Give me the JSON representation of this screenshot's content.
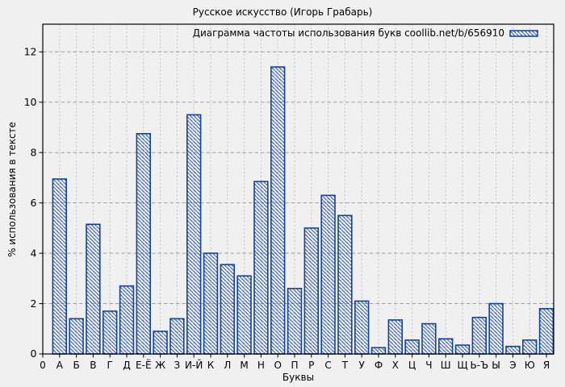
{
  "colors": {
    "background": "#f0f0f0",
    "bar_stroke": "#1243a2",
    "grid_major": "#9e9e9e",
    "grid_minor": "#b4b4b4",
    "axis": "#000000",
    "text": "#000000"
  },
  "chart_data": {
    "type": "bar",
    "title": "Русское искусство (Игорь Грабарь)",
    "legend_label": "Диаграмма частоты использования букв coollib.net/b/656910",
    "legend_position": "top-right",
    "xlabel": "Буквы",
    "ylabel": "% использования в тексте",
    "x_origin_label": "0",
    "categories": [
      "А",
      "Б",
      "В",
      "Г",
      "Д",
      "Е-Ё",
      "Ж",
      "З",
      "И-Й",
      "К",
      "Л",
      "М",
      "Н",
      "О",
      "П",
      "Р",
      "С",
      "Т",
      "У",
      "Ф",
      "Х",
      "Ц",
      "Ч",
      "Ш",
      "Щ",
      "Ь-Ъ",
      "Ы",
      "Э",
      "Ю",
      "Я"
    ],
    "values": [
      6.95,
      1.4,
      5.15,
      1.7,
      2.7,
      8.75,
      0.9,
      1.4,
      9.5,
      4.0,
      3.55,
      3.1,
      6.85,
      11.4,
      2.6,
      5.0,
      6.3,
      5.5,
      2.1,
      0.25,
      1.35,
      0.55,
      1.2,
      0.6,
      0.35,
      1.45,
      2.0,
      0.3,
      0.55,
      1.8
    ],
    "yticks": [
      0,
      2,
      4,
      6,
      8,
      10,
      12
    ],
    "ylim": [
      0,
      13.1
    ],
    "grid": true,
    "grid_style": "horizontal dashed, vertical dotted",
    "bar_style": "blue outline with diagonal \\ hatch fill"
  }
}
